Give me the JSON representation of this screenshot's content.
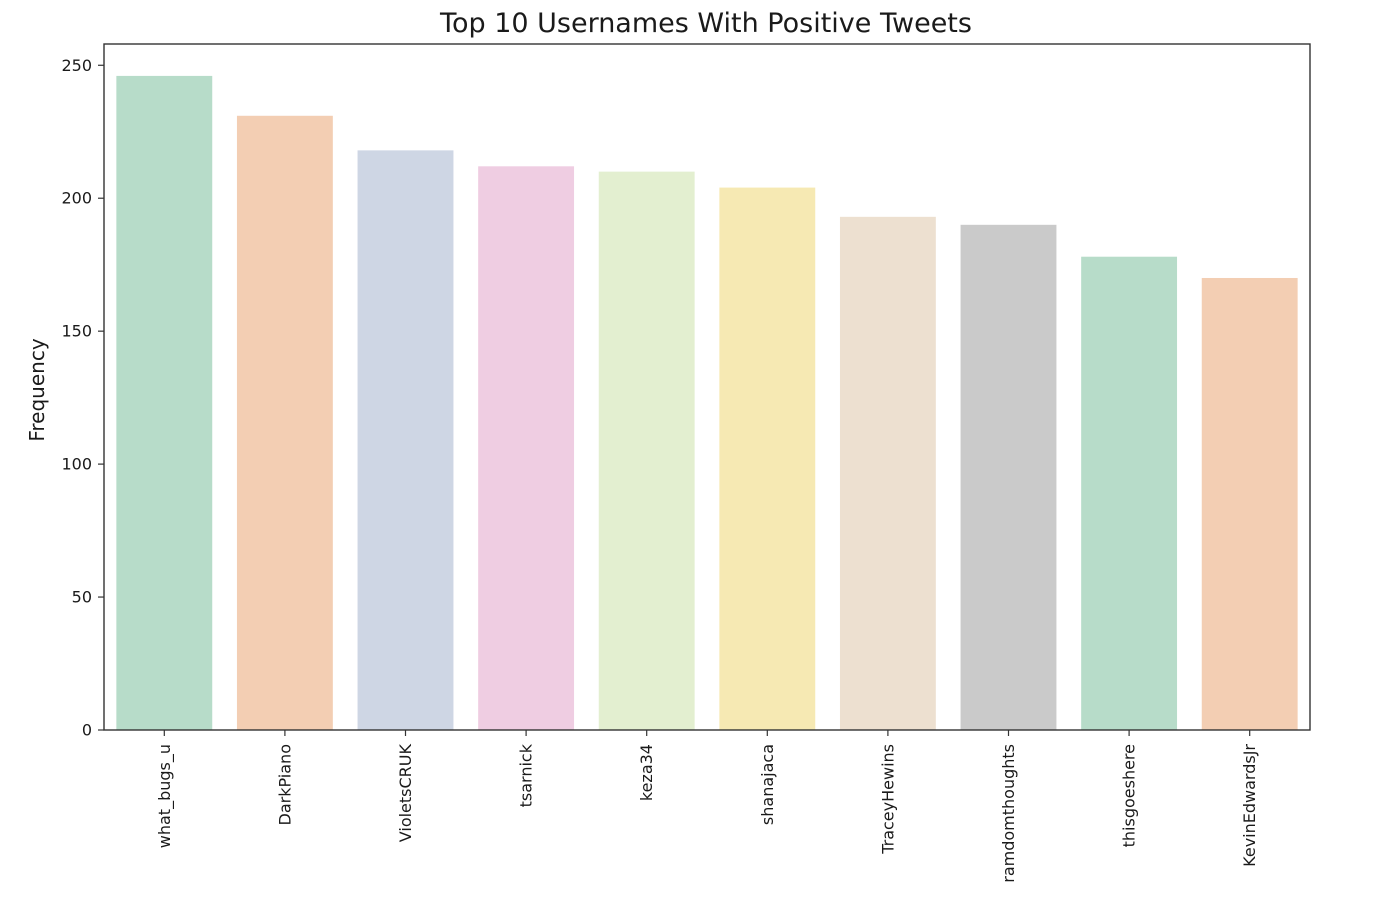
{
  "chart_data": {
    "type": "bar",
    "title": "Top 10 Usernames With Positive Tweets",
    "xlabel": "",
    "ylabel": "Frequency",
    "ylim": [
      0,
      258
    ],
    "yticks": [
      0,
      50,
      100,
      150,
      200,
      250
    ],
    "grid": false,
    "categories": [
      "what_bugs_u",
      "DarkPiano",
      "VioletsCRUK",
      "tsarnick",
      "keza34",
      "shanajaca",
      "TraceyHewins",
      "ramdomthoughts",
      "thisgoeshere",
      "KevinEdwardsJr"
    ],
    "values": [
      246,
      231,
      218,
      212,
      210,
      204,
      193,
      190,
      178,
      170
    ],
    "colors": [
      "#b7dcc9",
      "#f3ceb3",
      "#ced6e4",
      "#efcde2",
      "#e3efd0",
      "#f6e9b3",
      "#ede0d0",
      "#cacaca",
      "#b7dcc9",
      "#f3ceb3"
    ]
  }
}
